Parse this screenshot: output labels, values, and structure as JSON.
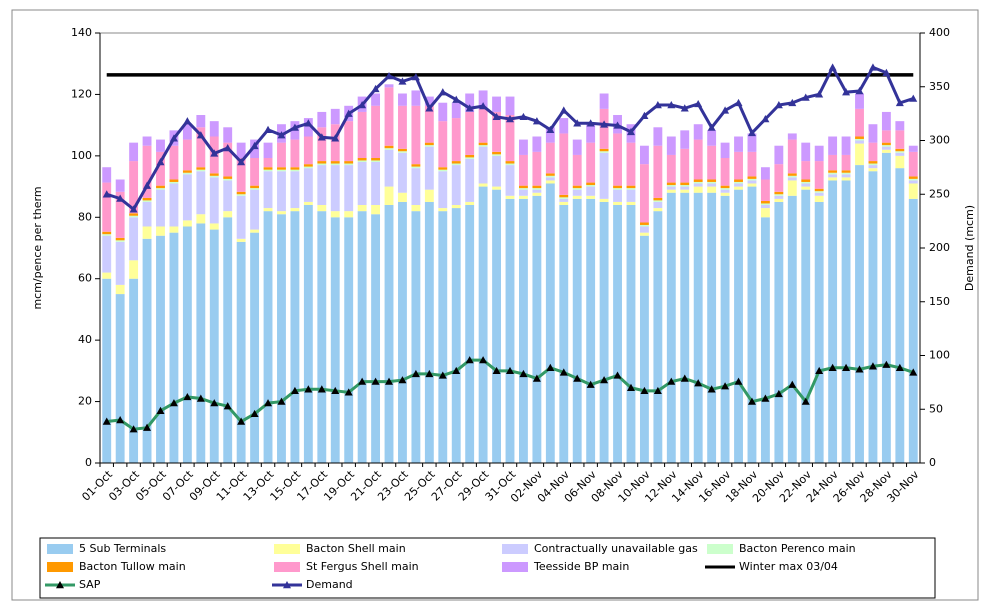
{
  "chart_data": {
    "type": "bar",
    "stacked": true,
    "categories": [
      "01-Oct",
      null,
      "03-Oct",
      null,
      "05-Oct",
      null,
      "07-Oct",
      null,
      "09-Oct",
      null,
      "11-Oct",
      null,
      "13-Oct",
      null,
      "15-Oct",
      null,
      "17-Oct",
      null,
      "19-Oct",
      null,
      "21-Oct",
      null,
      "23-Oct",
      null,
      "25-Oct",
      null,
      "27-Oct",
      null,
      "29-Oct",
      null,
      "31-Oct",
      null,
      "02-Nov",
      null,
      "04-Nov",
      null,
      "06-Nov",
      null,
      "08-Nov",
      null,
      "10-Nov",
      null,
      "12-Nov",
      null,
      "14-Nov",
      null,
      "16-Nov",
      null,
      "18-Nov",
      null,
      "20-Nov",
      null,
      "22-Nov",
      null,
      "24-Nov",
      null,
      "26-Nov",
      null,
      "28-Nov",
      null,
      "30-Nov"
    ],
    "ylabel": "mcm/pence per therm",
    "y2label": "Demand (mcm)",
    "ylim": [
      0,
      140
    ],
    "yticks": [
      0,
      20,
      40,
      60,
      80,
      100,
      120,
      140
    ],
    "y2lim": [
      0,
      400
    ],
    "y2ticks": [
      0,
      50,
      100,
      150,
      200,
      250,
      300,
      350,
      400
    ],
    "series": [
      {
        "name": "5 Sub Terminals",
        "color": "#99ccf0",
        "values": [
          60,
          55,
          60,
          73,
          74,
          75,
          77,
          78,
          76,
          80,
          72,
          75,
          82,
          81,
          82,
          84,
          82,
          80,
          80,
          82,
          81,
          84,
          85,
          82,
          85,
          82,
          83,
          84,
          90,
          89,
          86,
          86,
          87,
          91,
          84,
          86,
          86,
          85,
          84,
          84,
          74,
          82,
          88,
          88,
          88,
          88,
          87,
          89,
          90,
          80,
          85,
          87,
          89,
          85,
          92,
          92,
          97,
          95,
          101,
          96,
          86
        ]
      },
      {
        "name": "Bacton Shell main",
        "color": "#ffff99",
        "values": [
          2,
          3,
          6,
          4,
          3,
          2,
          2,
          3,
          2,
          2,
          1,
          1,
          1,
          1,
          1,
          1,
          2,
          2,
          2,
          2,
          3,
          6,
          3,
          2,
          4,
          1,
          1,
          1,
          1,
          1,
          1,
          1,
          1,
          1,
          1,
          1,
          1,
          1,
          1,
          1,
          1,
          1,
          1,
          1,
          2,
          2,
          1,
          1,
          1,
          3,
          1,
          5,
          1,
          2,
          1,
          1,
          7,
          1,
          1,
          4,
          5
        ]
      },
      {
        "name": "Contractually unavailable gas",
        "color": "#ccccff",
        "values": [
          12,
          14,
          14,
          8,
          12,
          14,
          15,
          14,
          15,
          10,
          14,
          13,
          12,
          13,
          12,
          11,
          13,
          15,
          15,
          14,
          14,
          12,
          13,
          12,
          14,
          12,
          13,
          14,
          12,
          10,
          10,
          2,
          1,
          1,
          1,
          2,
          3,
          15,
          4,
          4,
          2,
          2,
          1,
          1,
          1,
          1,
          1,
          1,
          1,
          1,
          1,
          1,
          1,
          1,
          1,
          1,
          1,
          1,
          1,
          1,
          1
        ]
      },
      {
        "name": "Bacton Perenco main",
        "color": "#ccffcc",
        "values": [
          0.5,
          0.5,
          0.5,
          0.5,
          0.5,
          0.5,
          0.5,
          0.5,
          0.5,
          0.5,
          0.5,
          0.5,
          0.5,
          0.5,
          0.5,
          0.5,
          0.5,
          0.5,
          0.5,
          0.5,
          0.5,
          0.5,
          0.5,
          0.5,
          0.5,
          0.5,
          0.5,
          0.5,
          0.5,
          0.5,
          0.5,
          0.5,
          0.5,
          0.5,
          0.5,
          0.5,
          0.5,
          0.5,
          0.5,
          0.5,
          0.5,
          0.5,
          0.5,
          0.5,
          0.5,
          0.5,
          0.5,
          0.5,
          0.5,
          0.5,
          0.5,
          0.5,
          0.5,
          0.5,
          0.5,
          0.5,
          0.5,
          0.5,
          0.5,
          0.5,
          0.5
        ]
      },
      {
        "name": "Bacton Tullow main",
        "color": "#ff9900",
        "values": [
          0.8,
          0.8,
          0.8,
          0.8,
          0.8,
          0.8,
          0.8,
          0.8,
          0.8,
          0.8,
          0.8,
          0.8,
          0.8,
          0.8,
          0.8,
          0.8,
          0.8,
          0.8,
          0.8,
          0.8,
          0.8,
          0.8,
          0.8,
          0.8,
          0.8,
          0.8,
          0.8,
          0.8,
          0.8,
          0.8,
          0.8,
          0.8,
          0.8,
          0.8,
          0.8,
          0.8,
          0.8,
          0.8,
          0.8,
          0.8,
          0.8,
          0.8,
          0.8,
          0.8,
          0.8,
          0.8,
          0.8,
          0.8,
          0.8,
          0.8,
          0.8,
          0.8,
          0.8,
          0.8,
          0.8,
          0.8,
          0.8,
          0.8,
          0.8,
          0.8,
          0.8
        ]
      },
      {
        "name": "St Fergus Shell main",
        "color": "#ff99cc",
        "values": [
          16,
          15,
          17,
          17,
          11,
          11,
          10,
          13,
          12,
          11,
          11,
          9,
          3,
          8,
          9,
          9,
          11,
          12,
          13,
          15,
          17,
          19,
          14,
          19,
          12,
          15,
          14,
          14,
          11,
          13,
          15,
          10,
          11,
          10,
          20,
          10,
          13,
          13,
          17,
          14,
          19,
          17,
          9,
          11,
          13,
          11,
          9,
          9,
          8,
          7,
          9,
          11,
          6,
          9,
          5,
          5,
          9,
          6,
          4,
          6,
          8
        ]
      },
      {
        "name": "Teesside BP main",
        "color": "#cc99ff",
        "values": [
          5,
          4,
          6,
          3,
          4,
          5,
          5,
          4,
          5,
          5,
          5,
          6,
          5,
          6,
          6,
          6,
          5,
          5,
          5,
          5,
          4,
          1,
          4,
          5,
          3,
          6,
          5,
          6,
          6,
          5,
          6,
          5,
          5,
          5,
          5,
          5,
          6,
          5,
          6,
          6,
          6,
          6,
          6,
          6,
          5,
          5,
          5,
          5,
          6,
          4,
          6,
          2,
          6,
          5,
          6,
          6,
          5,
          6,
          6,
          3,
          2
        ]
      },
      {
        "name": "SAP",
        "type": "line",
        "color": "#339966",
        "marker_color": "#000000",
        "values": [
          13.5,
          14,
          11,
          11.5,
          17,
          19.5,
          21.5,
          21,
          19.5,
          18.5,
          13.5,
          16,
          19.5,
          20,
          23.5,
          24,
          24,
          23.5,
          23,
          26.5,
          26.5,
          26.5,
          27,
          29,
          29,
          28.5,
          30,
          33.5,
          33.5,
          30,
          30,
          29,
          27.5,
          31,
          29.5,
          27.5,
          25.5,
          27,
          28.5,
          24.5,
          23.5,
          23.5,
          26.5,
          27.5,
          26,
          24,
          25,
          26.5,
          20,
          21,
          22.5,
          25.5,
          20,
          30,
          31,
          31,
          30.5,
          31.5,
          32,
          31,
          29.5
        ]
      },
      {
        "name": "Demand",
        "type": "line",
        "axis": "y2",
        "color": "#333399",
        "marker_color": "#333399",
        "values": [
          250,
          246,
          236,
          258,
          280,
          302,
          318,
          305,
          288,
          293,
          280,
          295,
          310,
          305,
          312,
          316,
          303,
          302,
          325,
          333,
          348,
          360,
          355,
          359,
          330,
          345,
          338,
          330,
          332,
          322,
          320,
          322,
          318,
          310,
          328,
          316,
          316,
          315,
          314,
          308,
          323,
          333,
          333,
          330,
          334,
          312,
          328,
          335,
          307,
          320,
          333,
          335,
          340,
          343,
          368,
          345,
          346,
          368,
          363,
          335,
          339
        ]
      }
    ],
    "reference_lines": [
      {
        "name": "Winter max 03/04",
        "value": 361,
        "axis": "y2",
        "color": "#000000"
      }
    ]
  }
}
